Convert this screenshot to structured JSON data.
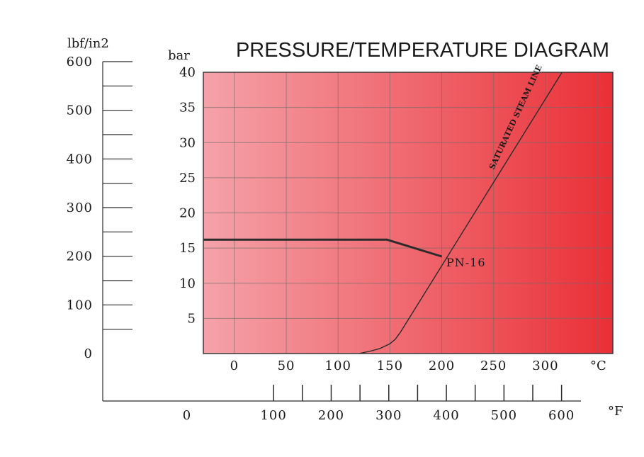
{
  "chart_data": {
    "type": "line",
    "title": "PRESSURE/TEMPERATURE DIAGRAM",
    "units": {
      "psi": "lbf/in2",
      "bar": "bar",
      "celsius": "°C",
      "fahrenheit": "°F"
    },
    "x_celsius": {
      "range": [
        -30,
        365
      ],
      "ticks": [
        "0",
        "50",
        "100",
        "150",
        "200",
        "250",
        "300"
      ]
    },
    "y_bar": {
      "range": [
        0,
        40
      ],
      "ticks": [
        "5",
        "10",
        "15",
        "20",
        "25",
        "30",
        "35",
        "40"
      ]
    },
    "psi_axis": {
      "range": [
        0,
        600
      ],
      "labels": [
        "0",
        "100",
        "200",
        "300",
        "400",
        "500",
        "600"
      ]
    },
    "fahrenheit_axis": {
      "labels": [
        "0",
        "100",
        "200",
        "300",
        "400",
        "500",
        "600"
      ]
    },
    "gradient_colors": [
      "#f5a2a9",
      "#ea2f36"
    ],
    "series": [
      {
        "name": "PN-16",
        "color": "#2b2b2b",
        "points": [
          [
            -30,
            16.2
          ],
          [
            147,
            16.2
          ],
          [
            200,
            13.8
          ]
        ]
      },
      {
        "name": "SATURATED STEAM LINE",
        "color": "#2b2b2b",
        "points": [
          [
            120,
            0
          ],
          [
            130,
            0.3
          ],
          [
            140,
            0.7
          ],
          [
            150,
            1.4
          ],
          [
            155,
            2.0
          ],
          [
            160,
            3.0
          ],
          [
            316,
            40
          ]
        ]
      }
    ]
  }
}
